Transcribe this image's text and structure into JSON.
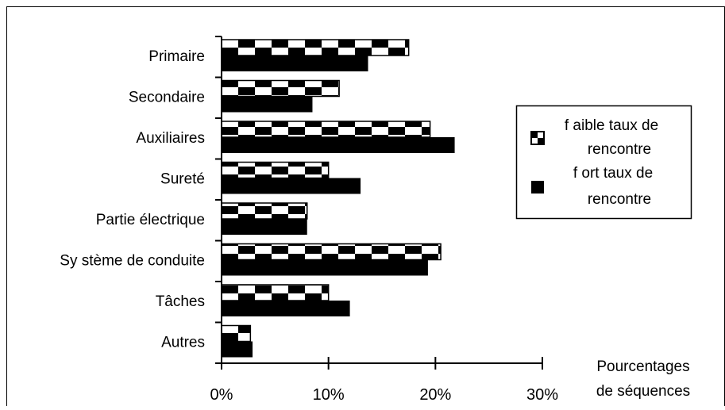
{
  "chart_data": {
    "type": "bar",
    "orientation": "horizontal",
    "categories": [
      "Primaire",
      "Secondaire",
      "Auxiliaires",
      "Sureté",
      "Partie électrique",
      "Sy stème de conduite",
      "Tâches",
      "Autres"
    ],
    "series": [
      {
        "name": "f aible taux de rencontre",
        "pattern": "checkerboard",
        "values": [
          17.5,
          11,
          19.5,
          10,
          8,
          20.5,
          10,
          2.7
        ]
      },
      {
        "name": "f ort taux de rencontre",
        "pattern": "solid",
        "color": "#000000",
        "values": [
          13.7,
          8.5,
          21.8,
          13,
          8,
          19.3,
          12,
          2.9
        ]
      }
    ],
    "xlim": [
      0,
      30
    ],
    "xticks": [
      "0%",
      "10%",
      "20%",
      "30%"
    ],
    "xlabel": [
      "Pourcentages",
      "de séquences"
    ],
    "legend": {
      "position": "right",
      "entries": [
        [
          "f aible taux de",
          "rencontre"
        ],
        [
          "f ort taux de",
          "rencontre"
        ]
      ]
    },
    "grid": false
  }
}
